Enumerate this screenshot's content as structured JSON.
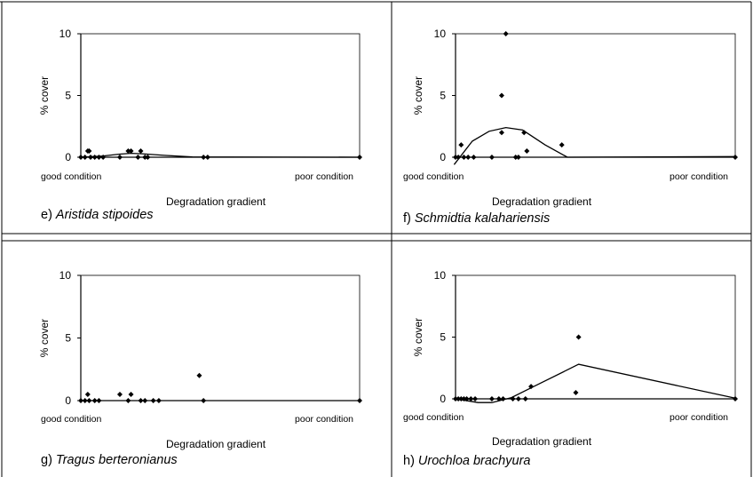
{
  "chart_data": [
    {
      "type": "scatter",
      "panel": "e",
      "caption_prefix": "e) ",
      "species": "Aristida stipoides",
      "ylabel": "% cover",
      "xlabel": "Degradation gradient",
      "x_start_label": "good condition",
      "x_end_label": "poor condition",
      "ylim": [
        0,
        10
      ],
      "yticks": [
        0,
        5,
        10
      ],
      "xlim": [
        0,
        100
      ],
      "points": [
        {
          "x": 0,
          "y": 0
        },
        {
          "x": 1.5,
          "y": 0
        },
        {
          "x": 2.5,
          "y": 0.5
        },
        {
          "x": 3,
          "y": 0.5
        },
        {
          "x": 3.5,
          "y": 0
        },
        {
          "x": 5,
          "y": 0
        },
        {
          "x": 6.5,
          "y": 0
        },
        {
          "x": 8,
          "y": 0
        },
        {
          "x": 14,
          "y": 0
        },
        {
          "x": 17,
          "y": 0.5
        },
        {
          "x": 18,
          "y": 0.5
        },
        {
          "x": 20.5,
          "y": 0
        },
        {
          "x": 21.5,
          "y": 0.5
        },
        {
          "x": 23,
          "y": 0
        },
        {
          "x": 24,
          "y": 0
        },
        {
          "x": 44,
          "y": 0
        },
        {
          "x": 45.5,
          "y": 0
        },
        {
          "x": 100,
          "y": 0
        }
      ],
      "trend": [
        {
          "x": 0,
          "y": 0
        },
        {
          "x": 8,
          "y": 0.1
        },
        {
          "x": 14,
          "y": 0.25
        },
        {
          "x": 18,
          "y": 0.32
        },
        {
          "x": 22,
          "y": 0.28
        },
        {
          "x": 30,
          "y": 0.15
        },
        {
          "x": 40,
          "y": 0.02
        },
        {
          "x": 100,
          "y": 0
        }
      ]
    },
    {
      "type": "scatter",
      "panel": "f",
      "caption_prefix": "f) ",
      "species": "Schmidtia kalahariensis",
      "ylabel": "% cover",
      "xlabel": "Degradation gradient",
      "x_start_label": "good condition",
      "x_end_label": "poor condition",
      "ylim": [
        0,
        10
      ],
      "yticks": [
        0,
        5,
        10
      ],
      "xlim": [
        0,
        100
      ],
      "points": [
        {
          "x": 0,
          "y": 0
        },
        {
          "x": 1,
          "y": 0
        },
        {
          "x": 2,
          "y": 1
        },
        {
          "x": 3,
          "y": 0
        },
        {
          "x": 4.5,
          "y": 0
        },
        {
          "x": 6.5,
          "y": 0
        },
        {
          "x": 13,
          "y": 0
        },
        {
          "x": 16.5,
          "y": 5
        },
        {
          "x": 16.5,
          "y": 2
        },
        {
          "x": 18,
          "y": 10
        },
        {
          "x": 21.5,
          "y": 0
        },
        {
          "x": 22.5,
          "y": 0
        },
        {
          "x": 24.5,
          "y": 2
        },
        {
          "x": 25.5,
          "y": 0.5
        },
        {
          "x": 38,
          "y": 1
        },
        {
          "x": 100,
          "y": 0
        }
      ],
      "trend": [
        {
          "x": -0.5,
          "y": -0.6
        },
        {
          "x": 6,
          "y": 1.3
        },
        {
          "x": 12,
          "y": 2.1
        },
        {
          "x": 18,
          "y": 2.4
        },
        {
          "x": 24,
          "y": 2.2
        },
        {
          "x": 32,
          "y": 1.0
        },
        {
          "x": 40,
          "y": 0
        },
        {
          "x": 100,
          "y": 0.05
        }
      ]
    },
    {
      "type": "scatter",
      "panel": "g",
      "caption_prefix": "g) ",
      "species": "Tragus berteronianus",
      "ylabel": "% cover",
      "xlabel": "Degradation gradient",
      "x_start_label": "good condition",
      "x_end_label": "poor condition",
      "ylim": [
        0,
        10
      ],
      "yticks": [
        0,
        5,
        10
      ],
      "xlim": [
        0,
        100
      ],
      "points": [
        {
          "x": 0,
          "y": 0
        },
        {
          "x": 1.5,
          "y": 0
        },
        {
          "x": 2.5,
          "y": 0.5
        },
        {
          "x": 3,
          "y": 0
        },
        {
          "x": 5,
          "y": 0
        },
        {
          "x": 6.5,
          "y": 0
        },
        {
          "x": 14,
          "y": 0.5
        },
        {
          "x": 17,
          "y": 0
        },
        {
          "x": 18,
          "y": 0.5
        },
        {
          "x": 21.5,
          "y": 0
        },
        {
          "x": 23,
          "y": 0
        },
        {
          "x": 26,
          "y": 0
        },
        {
          "x": 28,
          "y": 0
        },
        {
          "x": 42.5,
          "y": 2
        },
        {
          "x": 44,
          "y": 0
        },
        {
          "x": 100,
          "y": 0
        }
      ],
      "trend": []
    },
    {
      "type": "scatter",
      "panel": "h",
      "caption_prefix": "h) ",
      "species": "Urochloa brachyura",
      "ylabel": "% cover",
      "xlabel": "Degradation gradient",
      "x_start_label": "good condition",
      "x_end_label": "poor condition",
      "ylim": [
        0,
        10
      ],
      "yticks": [
        0,
        5,
        10
      ],
      "xlim": [
        0,
        100
      ],
      "points": [
        {
          "x": 0,
          "y": 0
        },
        {
          "x": 1,
          "y": 0
        },
        {
          "x": 2,
          "y": 0
        },
        {
          "x": 3,
          "y": 0
        },
        {
          "x": 4,
          "y": 0
        },
        {
          "x": 5.5,
          "y": 0
        },
        {
          "x": 7,
          "y": 0
        },
        {
          "x": 13,
          "y": 0
        },
        {
          "x": 15.5,
          "y": 0
        },
        {
          "x": 17,
          "y": 0
        },
        {
          "x": 20.5,
          "y": 0
        },
        {
          "x": 22.5,
          "y": 0
        },
        {
          "x": 25,
          "y": 0
        },
        {
          "x": 27,
          "y": 1
        },
        {
          "x": 43,
          "y": 0.5
        },
        {
          "x": 44,
          "y": 5
        },
        {
          "x": 100,
          "y": 0
        }
      ],
      "trend": [
        {
          "x": 0,
          "y": 0
        },
        {
          "x": 8,
          "y": -0.3
        },
        {
          "x": 13,
          "y": -0.3
        },
        {
          "x": 20,
          "y": 0.1
        },
        {
          "x": 28,
          "y": 1.0
        },
        {
          "x": 44,
          "y": 2.8
        },
        {
          "x": 100,
          "y": 0.05
        }
      ]
    }
  ]
}
